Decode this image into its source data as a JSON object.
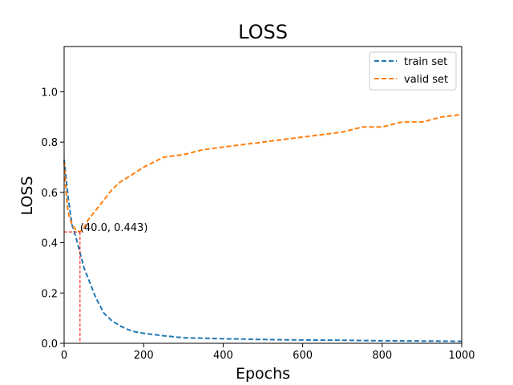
{
  "chart_data": {
    "type": "line",
    "title": "LOSS",
    "xlabel": "Epochs",
    "ylabel": "LOSS",
    "xlim": [
      0,
      1000
    ],
    "ylim": [
      0,
      1.18
    ],
    "xticks": [
      0,
      200,
      400,
      600,
      800,
      1000
    ],
    "yticks": [
      0.0,
      0.2,
      0.4,
      0.6,
      0.8,
      1.0
    ],
    "xtick_labels": [
      "0",
      "200",
      "400",
      "600",
      "800",
      "1000"
    ],
    "ytick_labels": [
      "0.0",
      "0.2",
      "0.4",
      "0.6",
      "0.8",
      "1.0"
    ],
    "grid": false,
    "legend_position": "top-right",
    "series": [
      {
        "name": "train set",
        "color": "#1f77b4",
        "style": "dashed",
        "x": [
          0,
          10,
          20,
          30,
          40,
          50,
          60,
          70,
          80,
          100,
          120,
          140,
          160,
          180,
          200,
          250,
          300,
          350,
          400,
          450,
          500,
          600,
          700,
          800,
          900,
          1000
        ],
        "values": [
          0.73,
          0.58,
          0.47,
          0.42,
          0.36,
          0.3,
          0.26,
          0.22,
          0.18,
          0.12,
          0.09,
          0.07,
          0.055,
          0.045,
          0.04,
          0.03,
          0.022,
          0.02,
          0.018,
          0.017,
          0.015,
          0.013,
          0.012,
          0.01,
          0.009,
          0.008
        ]
      },
      {
        "name": "valid set",
        "color": "#ff7f0e",
        "style": "dashed",
        "x": [
          0,
          5,
          10,
          20,
          30,
          40,
          50,
          60,
          70,
          80,
          100,
          120,
          140,
          160,
          180,
          200,
          250,
          300,
          350,
          400,
          450,
          500,
          550,
          600,
          650,
          700,
          750,
          800,
          850,
          900,
          950,
          1000
        ],
        "values": [
          0.72,
          0.6,
          0.52,
          0.47,
          0.45,
          0.443,
          0.46,
          0.49,
          0.51,
          0.53,
          0.57,
          0.61,
          0.64,
          0.66,
          0.68,
          0.7,
          0.74,
          0.75,
          0.77,
          0.78,
          0.79,
          0.8,
          0.81,
          0.82,
          0.83,
          0.84,
          0.86,
          0.86,
          0.88,
          0.88,
          0.9,
          0.91
        ]
      }
    ],
    "annotation": {
      "x": 40,
      "y": 0.443,
      "text": "(40.0, 0.443)",
      "color": "#ff0000"
    }
  }
}
